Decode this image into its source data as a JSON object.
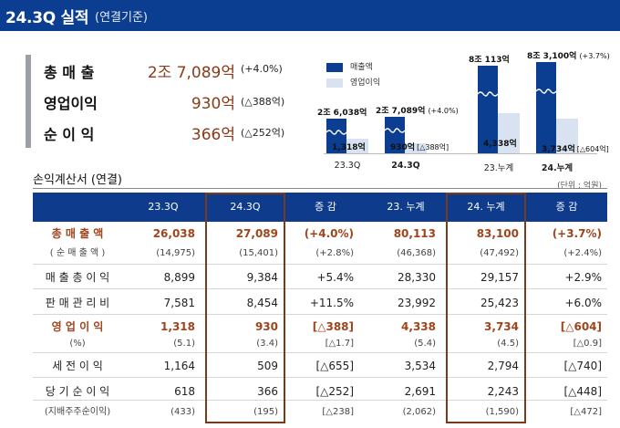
{
  "header": {
    "title": "24.3Q 실적",
    "subtitle": "(연결기준)"
  },
  "summary": [
    {
      "label": "총 매 출",
      "value": "2조 7,089억",
      "change": "(+4.0%)"
    },
    {
      "label": "영업이익",
      "value": "930억",
      "change": "(△388억)"
    },
    {
      "label": "순 이 익",
      "value": "366억",
      "change": "(△252억)"
    }
  ],
  "chart": {
    "legend": [
      {
        "label": "매출액",
        "color": "#0b3d91"
      },
      {
        "label": "영업이익",
        "color": "#d9e2f1"
      }
    ],
    "groups": [
      {
        "label": "23.3Q",
        "bold": false,
        "revenue": 26038,
        "op_income": 1318,
        "revenue_label": "2조 6,038억",
        "revenue_change": "",
        "op_label": "1,318억",
        "op_change": ""
      },
      {
        "label": "24.3Q",
        "bold": true,
        "revenue": 27089,
        "op_income": 930,
        "revenue_label": "2조 7,089억",
        "revenue_change": "(+4.0%)",
        "op_label": "930억",
        "op_change": "[△388억]"
      },
      {
        "label": "23.누계",
        "bold": false,
        "revenue": 80113,
        "op_income": 4338,
        "revenue_label": "8조 113억",
        "revenue_change": "",
        "op_label": "4,338억",
        "op_change": ""
      },
      {
        "label": "24.누계",
        "bold": true,
        "revenue": 83100,
        "op_income": 3734,
        "revenue_label": "8조 3,100억",
        "revenue_change": "(+3.7%)",
        "op_label": "3,734억",
        "op_change": "[△604억]"
      }
    ]
  },
  "table": {
    "title": "손익계산서 (연결)",
    "unit": "(단위 : 억원)",
    "headers": [
      "",
      "23.3Q",
      "24.3Q",
      "증 감",
      "23. 누계",
      "24. 누계",
      "증 감"
    ],
    "rows": [
      {
        "label": "총 매 출 액",
        "values": [
          "26,038",
          "27,089",
          "(+4.0%)",
          "80,113",
          "83,100",
          "(+3.7%)"
        ],
        "style": "hl"
      },
      {
        "label": "( 순 매 출 액 )",
        "values": [
          "(14,975)",
          "(15,401)",
          "(+2.8%)",
          "(46,368)",
          "(47,492)",
          "(+2.4%)"
        ],
        "style": "sub"
      },
      {
        "label": "매 출 총 이 익",
        "values": [
          "8,899",
          "9,384",
          "+5.4%",
          "28,330",
          "29,157",
          "+2.9%"
        ],
        "style": "normal"
      },
      {
        "label": "판 매 관 리 비",
        "values": [
          "7,581",
          "8,454",
          "+11.5%",
          "23,992",
          "25,423",
          "+6.0%"
        ],
        "style": "normal"
      },
      {
        "label": "영 업 이 익",
        "values": [
          "1,318",
          "930",
          "[△388]",
          "4,338",
          "3,734",
          "[△604]"
        ],
        "style": "hl"
      },
      {
        "label": "(%)",
        "values": [
          "(5.1)",
          "(3.4)",
          "[△1.7]",
          "(5.4)",
          "(4.5)",
          "[△0.9]"
        ],
        "style": "sub"
      },
      {
        "label": "세 전 이 익",
        "values": [
          "1,164",
          "509",
          "[△655]",
          "3,534",
          "2,794",
          "[△740]"
        ],
        "style": "normal"
      },
      {
        "label": "당 기 순 이 익",
        "values": [
          "618",
          "366",
          "[△252]",
          "2,691",
          "2,243",
          "[△448]"
        ],
        "style": "normal"
      },
      {
        "label": "(지배주주순이익)",
        "values": [
          "(433)",
          "(195)",
          "[△238]",
          "(2,062)",
          "(1,590)",
          "[△472]"
        ],
        "style": "sub"
      }
    ]
  }
}
